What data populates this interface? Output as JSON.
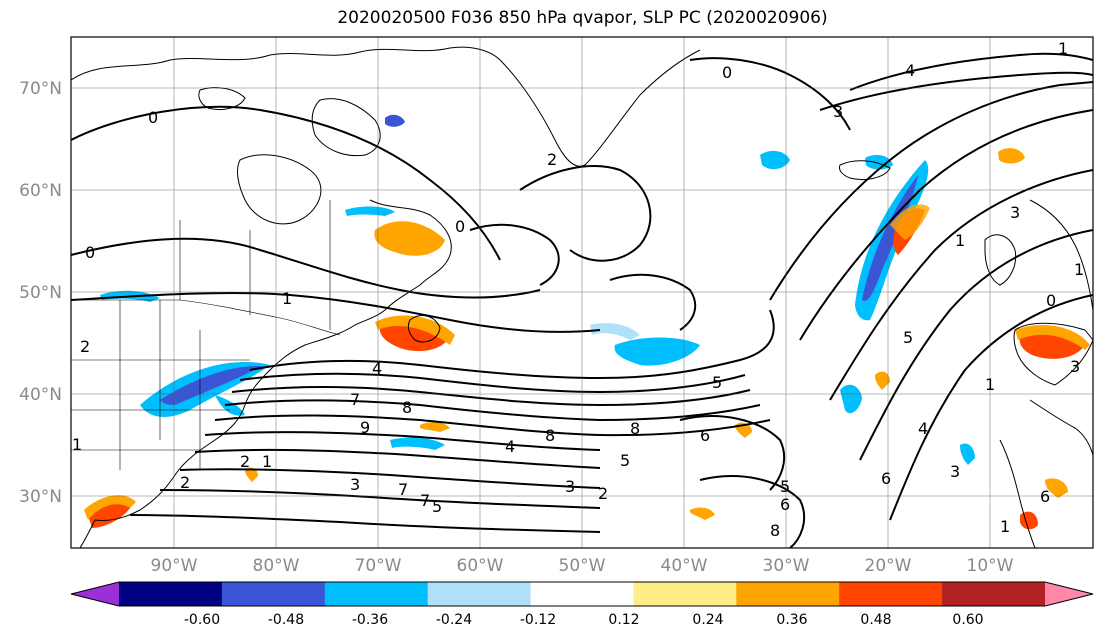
{
  "title": "2020020500 F036 850 hPa qvapor, SLP PC (2020020906)",
  "axes": {
    "lon_labels": [
      "90°W",
      "80°W",
      "70°W",
      "60°W",
      "50°W",
      "40°W",
      "30°W",
      "20°W",
      "10°W"
    ],
    "lat_labels": [
      "70°N",
      "60°N",
      "50°N",
      "40°N",
      "30°N"
    ]
  },
  "colorbar": {
    "colors": [
      "#9b30d8",
      "#000080",
      "#3a56d6",
      "#00bfff",
      "#b0e0fa",
      "#ffffff",
      "#ffee88",
      "#ffa500",
      "#ff4500",
      "#b22222",
      "#ff88aa"
    ],
    "tick_labels": [
      "-0.60",
      "-0.48",
      "-0.36",
      "-0.24",
      "-0.12",
      "0.12",
      "0.24",
      "0.36",
      "0.48",
      "0.60"
    ]
  },
  "contour_labels": [
    "0",
    "4",
    "3",
    "1",
    "0",
    "2",
    "1",
    "0",
    "1",
    "1",
    "0",
    "2",
    "4",
    "6",
    "8",
    "7",
    "8",
    "9",
    "4",
    "2",
    "3",
    "5",
    "8",
    "6",
    "5",
    "7",
    "5",
    "3",
    "2",
    "6",
    "5",
    "4",
    "3",
    "1",
    "0",
    "2",
    "1",
    "3",
    "7",
    "8",
    "5",
    "1",
    "1",
    "6",
    "3"
  ]
}
